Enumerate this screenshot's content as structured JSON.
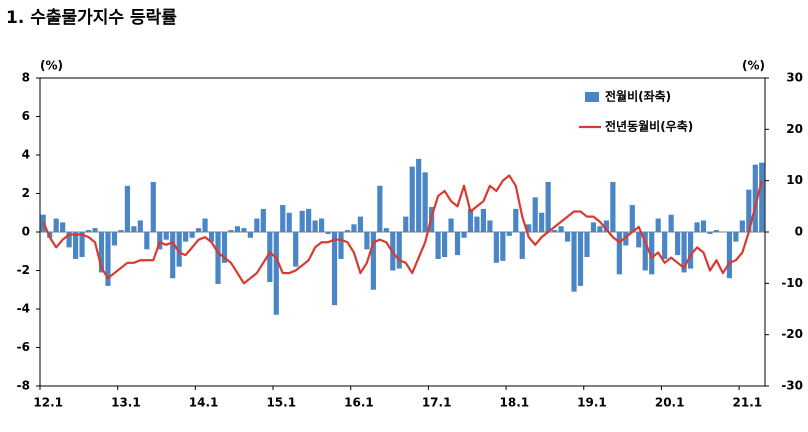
{
  "chart_data": {
    "type": "bar_line",
    "title": "1. 수출물가지수 등락률",
    "y_unit": "(%)",
    "y2_unit": "(%)",
    "categories": [
      "12.1",
      null,
      null,
      null,
      null,
      null,
      null,
      null,
      null,
      null,
      null,
      null,
      "13.1",
      null,
      null,
      null,
      null,
      null,
      null,
      null,
      null,
      null,
      null,
      null,
      "14.1",
      null,
      null,
      null,
      null,
      null,
      null,
      null,
      null,
      null,
      null,
      null,
      "15.1",
      null,
      null,
      null,
      null,
      null,
      null,
      null,
      null,
      null,
      null,
      null,
      "16.1",
      null,
      null,
      null,
      null,
      null,
      null,
      null,
      null,
      null,
      null,
      null,
      "17.1",
      null,
      null,
      null,
      null,
      null,
      null,
      null,
      null,
      null,
      null,
      null,
      "18.1",
      null,
      null,
      null,
      null,
      null,
      null,
      null,
      null,
      null,
      null,
      null,
      "19.1",
      null,
      null,
      null,
      null,
      null,
      null,
      null,
      null,
      null,
      null,
      null,
      "20.1",
      null,
      null,
      null,
      null,
      null,
      null,
      null,
      null,
      null,
      null,
      null,
      "21.1",
      null,
      null,
      null
    ],
    "series": [
      {
        "name": "전월비(좌축)",
        "type": "bar",
        "color": "#4a86c5",
        "values": [
          0.9,
          -0.3,
          0.7,
          0.5,
          -0.8,
          -1.4,
          -1.3,
          0.1,
          0.2,
          -2.1,
          -2.8,
          -0.7,
          0.1,
          2.4,
          0.3,
          0.6,
          -0.9,
          2.6,
          -0.9,
          -0.4,
          -2.4,
          -1.8,
          -0.5,
          -0.3,
          0.2,
          0.7,
          -0.5,
          -2.7,
          -1.6,
          0.1,
          0.3,
          0.2,
          -0.3,
          0.7,
          1.2,
          -2.6,
          -4.3,
          1.4,
          1.0,
          -1.8,
          1.1,
          1.2,
          0.6,
          0.7,
          -0.1,
          -3.8,
          -1.4,
          0.1,
          0.4,
          0.8,
          -0.9,
          -3.0,
          2.4,
          0.2,
          -2.0,
          -1.9,
          0.8,
          3.4,
          3.8,
          3.1,
          1.3,
          -1.4,
          -1.3,
          0.7,
          -1.2,
          -0.3,
          1.2,
          0.8,
          1.2,
          0.6,
          -1.6,
          -1.5,
          -0.2,
          1.2,
          -1.4,
          0.4,
          1.8,
          1.0,
          2.6,
          0.1,
          0.3,
          -0.5,
          -3.1,
          -2.8,
          -1.3,
          0.5,
          0.3,
          0.6,
          2.6,
          -2.2,
          -0.7,
          1.4,
          -0.8,
          -2.0,
          -2.2,
          0.7,
          -1.4,
          0.9,
          -1.2,
          -2.1,
          -1.9,
          0.5,
          0.6,
          -0.1,
          0.1,
          0.0,
          -2.4,
          -0.5,
          0.6,
          2.2,
          3.5,
          3.6
        ]
      },
      {
        "name": "전년동월비(우축)",
        "type": "line",
        "axis": "y2",
        "color": "#d83a2f",
        "values": [
          2,
          -1,
          -3,
          -1.5,
          -0.5,
          -0.5,
          -0.5,
          -1,
          -2,
          -7,
          -9,
          -8,
          -7,
          -6,
          -6,
          -5.5,
          -5.5,
          -5.5,
          -2,
          -2.5,
          -2,
          -4,
          -4.5,
          -3,
          -1.5,
          -1,
          -2,
          -4,
          -5,
          -6,
          -8,
          -10,
          -9,
          -8,
          -6,
          -4,
          -5,
          -8,
          -8,
          -7.5,
          -6.5,
          -5.5,
          -3,
          -2,
          -2,
          -1.5,
          -1.5,
          -2,
          -4,
          -8,
          -6,
          -2,
          -1.5,
          -2,
          -4,
          -5.5,
          -6,
          -8,
          -5,
          -2,
          3,
          7,
          8,
          6,
          5,
          9,
          4,
          5,
          6,
          9,
          8,
          10,
          11,
          9,
          3,
          -1,
          -2.5,
          -1,
          0,
          1,
          2,
          3,
          4,
          4,
          3,
          3,
          2,
          0.5,
          -1,
          -2,
          -1,
          0,
          1,
          -2,
          -5,
          -4,
          -6,
          -5,
          -6,
          -7,
          -4.5,
          -3,
          -4,
          -7.5,
          -5.5,
          -8,
          -6,
          -5.5,
          -4,
          0,
          5,
          10
        ]
      }
    ],
    "ylim": [
      -8,
      8
    ],
    "yticks": [
      -8,
      -6,
      -4,
      -2,
      0,
      2,
      4,
      6,
      8
    ],
    "y2lim": [
      -30,
      30
    ],
    "y2ticks": [
      -30,
      -20,
      -10,
      0,
      10,
      20,
      30
    ],
    "grid": false,
    "legend": "upper right"
  }
}
